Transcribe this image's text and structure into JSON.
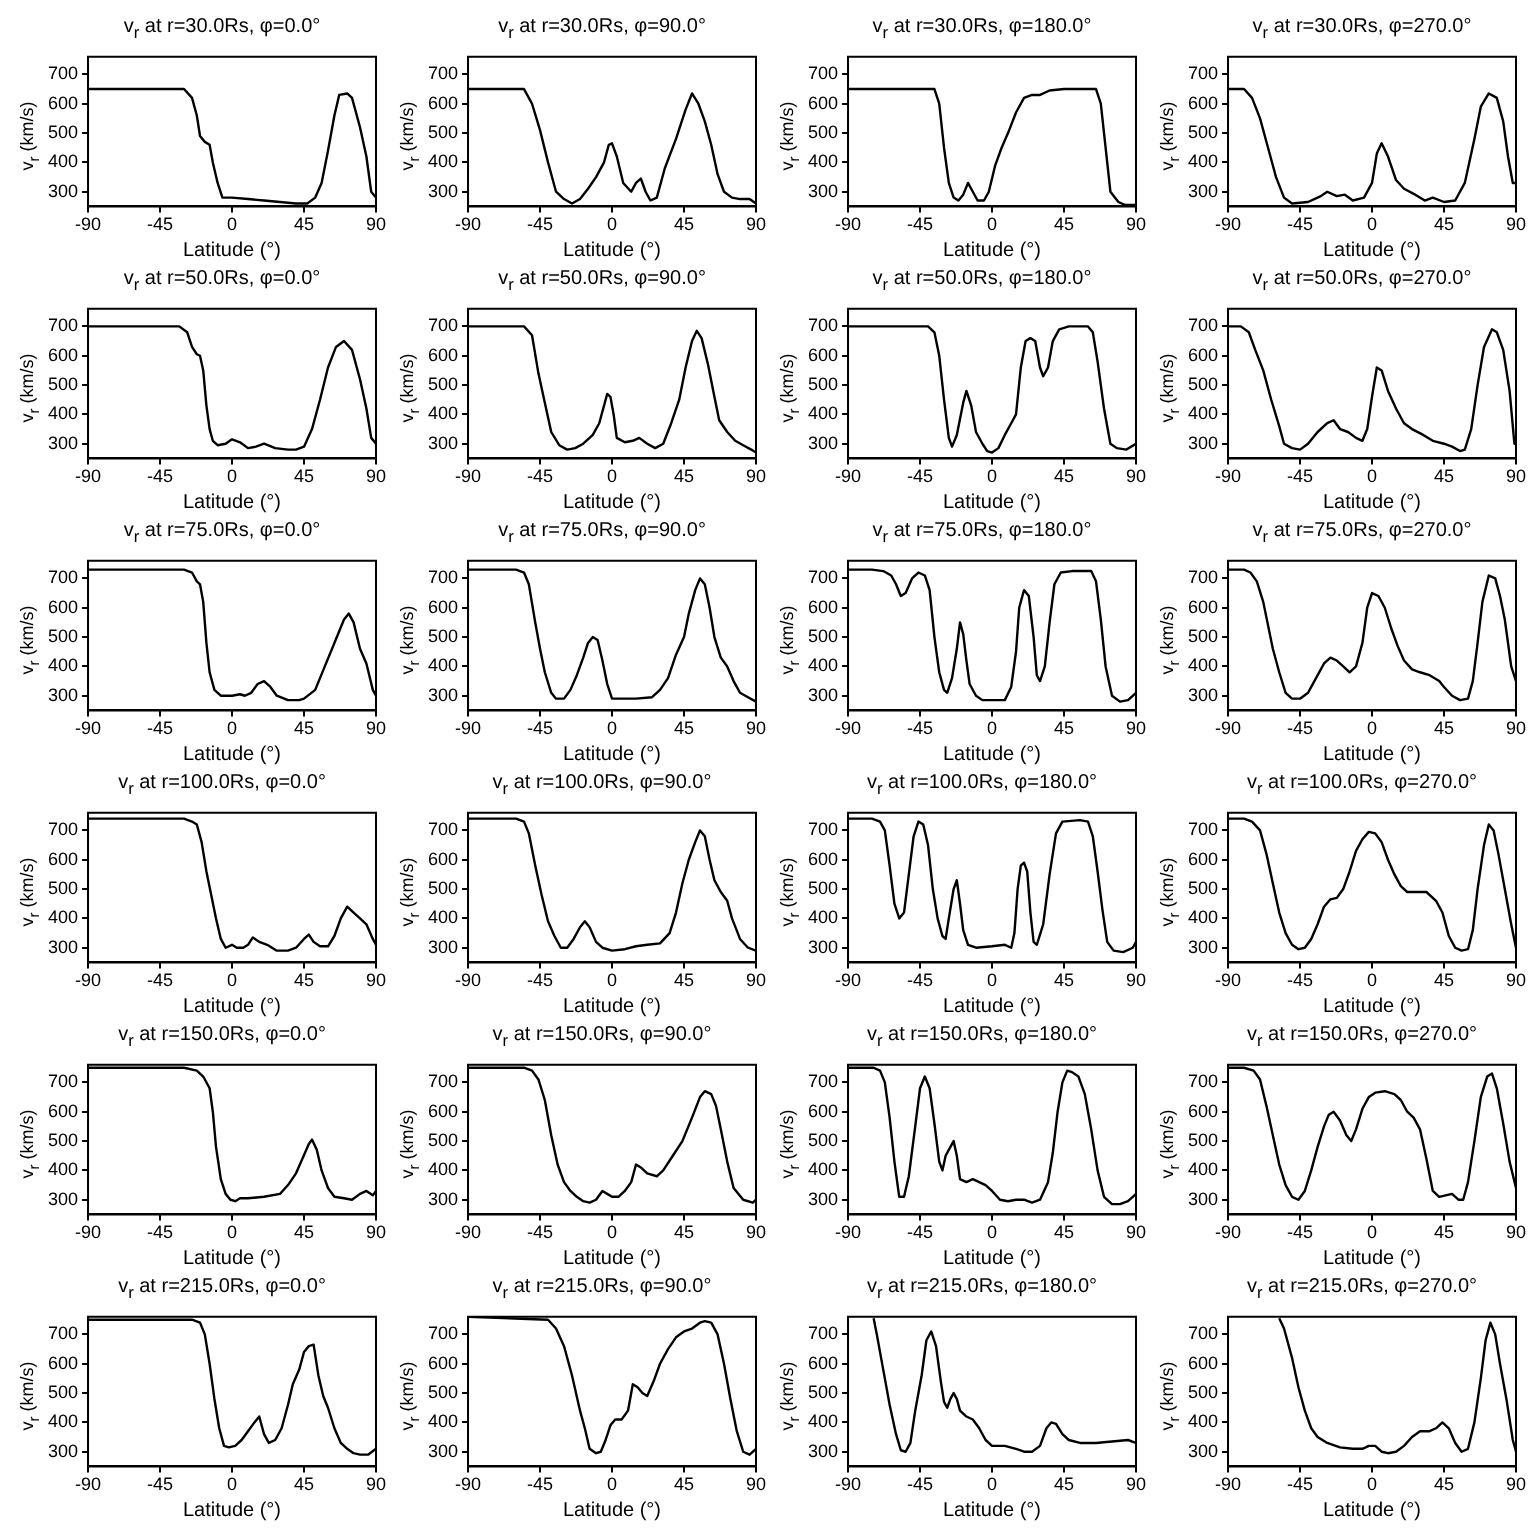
{
  "chart_data": [
    {
      "type": "line",
      "title": "v$_{r}$ at r=30.0Rs, φ=0.0°",
      "xlabel": "Latitude (°)",
      "ylabel": "v$_{r}$ (km/s)",
      "color": "#000000",
      "xlim": [
        -90,
        90
      ],
      "xticks": [
        -90,
        -45,
        0,
        45,
        90
      ],
      "ylim": [
        250,
        760
      ],
      "yticks": [
        300,
        400,
        500,
        600,
        700
      ],
      "x": [
        -90,
        -30,
        -25,
        -22,
        -20,
        -17,
        -14,
        -12,
        -9,
        -6,
        0,
        10,
        20,
        30,
        40,
        47,
        52,
        56,
        60,
        64,
        67,
        72,
        75,
        80,
        84,
        87,
        90
      ],
      "values": [
        650,
        650,
        620,
        560,
        490,
        470,
        460,
        400,
        330,
        280,
        280,
        275,
        270,
        265,
        260,
        260,
        280,
        330,
        440,
        560,
        630,
        635,
        620,
        520,
        420,
        300,
        280
      ]
    },
    {
      "type": "line",
      "title": "v$_{r}$ at r=30.0Rs, φ=90.0°",
      "xlabel": "Latitude (°)",
      "ylabel": "v$_{r}$ (km/s)",
      "color": "#000000",
      "xlim": [
        -90,
        90
      ],
      "xticks": [
        -90,
        -45,
        0,
        45,
        90
      ],
      "ylim": [
        250,
        760
      ],
      "yticks": [
        300,
        400,
        500,
        600,
        700
      ],
      "x": [
        -90,
        -55,
        -50,
        -45,
        -40,
        -35,
        -30,
        -25,
        -20,
        -15,
        -10,
        -5,
        -2,
        0,
        3,
        7,
        12,
        15,
        18,
        21,
        24,
        28,
        33,
        40,
        46,
        50,
        54,
        58,
        62,
        66,
        70,
        75,
        80,
        86,
        90
      ],
      "values": [
        650,
        650,
        600,
        510,
        400,
        300,
        275,
        260,
        275,
        310,
        350,
        400,
        460,
        465,
        420,
        330,
        300,
        330,
        345,
        300,
        270,
        280,
        380,
        480,
        580,
        635,
        600,
        540,
        460,
        360,
        300,
        280,
        275,
        275,
        260
      ]
    },
    {
      "type": "line",
      "title": "v$_{r}$ at r=30.0Rs, φ=180.0°",
      "xlabel": "Latitude (°)",
      "ylabel": "v$_{r}$ (km/s)",
      "color": "#000000",
      "xlim": [
        -90,
        90
      ],
      "xticks": [
        -90,
        -45,
        0,
        45,
        90
      ],
      "ylim": [
        250,
        760
      ],
      "yticks": [
        300,
        400,
        500,
        600,
        700
      ],
      "x": [
        -90,
        -36,
        -33,
        -30,
        -27,
        -24,
        -21,
        -18,
        -15,
        -12,
        -9,
        -5,
        -2,
        2,
        6,
        10,
        15,
        20,
        25,
        30,
        36,
        45,
        65,
        68,
        71,
        74,
        79,
        83,
        90
      ],
      "values": [
        650,
        650,
        600,
        450,
        330,
        280,
        270,
        290,
        330,
        300,
        270,
        270,
        300,
        390,
        450,
        500,
        570,
        620,
        630,
        630,
        645,
        650,
        650,
        600,
        450,
        300,
        265,
        255,
        255
      ]
    },
    {
      "type": "line",
      "title": "v$_{r}$ at r=30.0Rs, φ=270.0°",
      "xlabel": "Latitude (°)",
      "ylabel": "v$_{r}$ (km/s)",
      "color": "#000000",
      "xlim": [
        -90,
        90
      ],
      "xticks": [
        -90,
        -45,
        0,
        45,
        90
      ],
      "ylim": [
        250,
        760
      ],
      "yticks": [
        300,
        400,
        500,
        600,
        700
      ],
      "x": [
        -90,
        -80,
        -75,
        -70,
        -65,
        -60,
        -55,
        -50,
        -40,
        -32,
        -28,
        -22,
        -17,
        -12,
        -5,
        0,
        3,
        6,
        10,
        15,
        20,
        27,
        33,
        38,
        45,
        52,
        58,
        64,
        68,
        73,
        78,
        82,
        85,
        88,
        90
      ],
      "values": [
        650,
        650,
        620,
        550,
        450,
        350,
        280,
        260,
        265,
        285,
        300,
        285,
        290,
        270,
        280,
        330,
        430,
        465,
        420,
        340,
        310,
        290,
        270,
        280,
        265,
        270,
        330,
        480,
        590,
        635,
        620,
        540,
        420,
        330,
        330
      ]
    },
    {
      "type": "line",
      "title": "v$_{r}$ at r=50.0Rs, φ=0.0°",
      "xlabel": "Latitude (°)",
      "ylabel": "v$_{r}$ (km/s)",
      "color": "#000000",
      "xlim": [
        -90,
        90
      ],
      "xticks": [
        -90,
        -45,
        0,
        45,
        90
      ],
      "ylim": [
        250,
        760
      ],
      "yticks": [
        300,
        400,
        500,
        600,
        700
      ],
      "x": [
        -90,
        -33,
        -28,
        -25,
        -22,
        -20,
        -18,
        -16,
        -14,
        -12,
        -9,
        -4,
        0,
        5,
        10,
        15,
        20,
        27,
        35,
        40,
        45,
        50,
        55,
        60,
        65,
        70,
        75,
        80,
        84,
        87,
        90
      ],
      "values": [
        700,
        700,
        680,
        630,
        605,
        600,
        550,
        430,
        350,
        310,
        295,
        300,
        315,
        305,
        285,
        290,
        300,
        285,
        280,
        280,
        290,
        350,
        450,
        560,
        630,
        650,
        620,
        520,
        420,
        320,
        300
      ]
    },
    {
      "type": "line",
      "title": "v$_{r}$ at r=50.0Rs, φ=90.0°",
      "xlabel": "Latitude (°)",
      "ylabel": "v$_{r}$ (km/s)",
      "color": "#000000",
      "xlim": [
        -90,
        90
      ],
      "xticks": [
        -90,
        -45,
        0,
        45,
        90
      ],
      "ylim": [
        250,
        760
      ],
      "yticks": [
        300,
        400,
        500,
        600,
        700
      ],
      "x": [
        -90,
        -55,
        -50,
        -46,
        -42,
        -38,
        -33,
        -28,
        -23,
        -18,
        -12,
        -8,
        -5,
        -3,
        -1,
        1,
        3,
        8,
        13,
        17,
        22,
        27,
        32,
        37,
        42,
        46,
        50,
        53,
        56,
        60,
        64,
        67,
        72,
        77,
        82,
        87,
        90
      ],
      "values": [
        700,
        700,
        670,
        540,
        440,
        340,
        295,
        280,
        285,
        300,
        330,
        370,
        430,
        470,
        460,
        400,
        320,
        305,
        310,
        320,
        300,
        285,
        300,
        370,
        450,
        560,
        650,
        685,
        660,
        570,
        460,
        380,
        340,
        310,
        295,
        280,
        270
      ]
    },
    {
      "type": "line",
      "title": "v$_{r}$ at r=50.0Rs, φ=180.0°",
      "xlabel": "Latitude (°)",
      "ylabel": "v$_{r}$ (km/s)",
      "color": "#000000",
      "xlim": [
        -90,
        90
      ],
      "xticks": [
        -90,
        -45,
        0,
        45,
        90
      ],
      "ylim": [
        250,
        760
      ],
      "yticks": [
        300,
        400,
        500,
        600,
        700
      ],
      "x": [
        -90,
        -50,
        -40,
        -36,
        -33,
        -30,
        -27,
        -25,
        -22,
        -18,
        -16,
        -13,
        -10,
        -6,
        -3,
        0,
        4,
        8,
        12,
        15,
        18,
        21,
        24,
        27,
        30,
        32,
        35,
        38,
        42,
        48,
        60,
        63,
        66,
        70,
        74,
        78,
        84,
        90
      ],
      "values": [
        700,
        700,
        700,
        680,
        600,
        450,
        320,
        290,
        330,
        440,
        480,
        430,
        340,
        300,
        275,
        270,
        285,
        330,
        370,
        400,
        560,
        650,
        660,
        650,
        560,
        530,
        560,
        650,
        690,
        700,
        700,
        680,
        580,
        420,
        300,
        285,
        280,
        300
      ]
    },
    {
      "type": "line",
      "title": "v$_{r}$ at r=50.0Rs, φ=270.0°",
      "xlabel": "Latitude (°)",
      "ylabel": "v$_{r}$ (km/s)",
      "color": "#000000",
      "xlim": [
        -90,
        90
      ],
      "xticks": [
        -90,
        -45,
        0,
        45,
        90
      ],
      "ylim": [
        250,
        760
      ],
      "yticks": [
        300,
        400,
        500,
        600,
        700
      ],
      "x": [
        -90,
        -82,
        -77,
        -73,
        -68,
        -63,
        -58,
        -55,
        -50,
        -45,
        -40,
        -34,
        -28,
        -24,
        -20,
        -15,
        -10,
        -6,
        -3,
        0,
        3,
        6,
        10,
        15,
        20,
        25,
        32,
        38,
        45,
        50,
        55,
        58,
        62,
        66,
        70,
        75,
        78,
        82,
        86,
        89,
        90
      ],
      "values": [
        700,
        700,
        680,
        620,
        550,
        450,
        360,
        300,
        285,
        280,
        300,
        340,
        370,
        380,
        350,
        340,
        320,
        310,
        350,
        460,
        560,
        550,
        480,
        420,
        370,
        350,
        330,
        310,
        300,
        290,
        275,
        280,
        350,
        500,
        630,
        690,
        680,
        620,
        480,
        300,
        300
      ]
    },
    {
      "type": "line",
      "title": "v$_{r}$ at r=75.0Rs, φ=0.0°",
      "xlabel": "Latitude (°)",
      "ylabel": "v$_{r}$ (km/s)",
      "color": "#000000",
      "xlim": [
        -90,
        90
      ],
      "xticks": [
        -90,
        -45,
        0,
        45,
        90
      ],
      "ylim": [
        250,
        760
      ],
      "yticks": [
        300,
        400,
        500,
        600,
        700
      ],
      "x": [
        -90,
        -30,
        -25,
        -22,
        -20,
        -18,
        -16,
        -14,
        -11,
        -7,
        0,
        5,
        8,
        12,
        16,
        20,
        24,
        28,
        35,
        42,
        45,
        52,
        58,
        64,
        70,
        73,
        76,
        80,
        84,
        88,
        90
      ],
      "values": [
        730,
        730,
        720,
        690,
        680,
        620,
        480,
        380,
        320,
        300,
        300,
        305,
        300,
        310,
        340,
        350,
        330,
        300,
        285,
        285,
        290,
        320,
        400,
        480,
        560,
        580,
        550,
        460,
        410,
        320,
        300
      ]
    },
    {
      "type": "line",
      "title": "v$_{r}$ at r=75.0Rs, φ=90.0°",
      "xlabel": "Latitude (°)",
      "ylabel": "v$_{r}$ (km/s)",
      "color": "#000000",
      "xlim": [
        -90,
        90
      ],
      "xticks": [
        -90,
        -45,
        0,
        45,
        90
      ],
      "ylim": [
        250,
        760
      ],
      "yticks": [
        300,
        400,
        500,
        600,
        700
      ],
      "x": [
        -90,
        -60,
        -55,
        -52,
        -48,
        -45,
        -42,
        -38,
        -35,
        -30,
        -26,
        -22,
        -18,
        -15,
        -12,
        -9,
        -6,
        -3,
        0,
        5,
        15,
        25,
        30,
        35,
        40,
        45,
        48,
        52,
        55,
        58,
        61,
        64,
        68,
        72,
        76,
        80,
        85,
        90
      ],
      "values": [
        730,
        730,
        720,
        680,
        550,
        460,
        380,
        310,
        290,
        290,
        320,
        370,
        430,
        480,
        500,
        490,
        420,
        340,
        290,
        290,
        290,
        295,
        320,
        360,
        440,
        500,
        580,
        660,
        700,
        680,
        600,
        500,
        430,
        400,
        350,
        310,
        295,
        280
      ]
    },
    {
      "type": "line",
      "title": "v$_{r}$ at r=75.0Rs, φ=180.0°",
      "xlabel": "Latitude (°)",
      "ylabel": "v$_{r}$ (km/s)",
      "color": "#000000",
      "xlim": [
        -90,
        90
      ],
      "xticks": [
        -90,
        -45,
        0,
        45,
        90
      ],
      "ylim": [
        250,
        760
      ],
      "yticks": [
        300,
        400,
        500,
        600,
        700
      ],
      "x": [
        -90,
        -75,
        -68,
        -63,
        -60,
        -57,
        -54,
        -50,
        -46,
        -42,
        -39,
        -36,
        -33,
        -30,
        -28,
        -25,
        -22,
        -20,
        -18,
        -16,
        -14,
        -10,
        -6,
        0,
        8,
        12,
        15,
        17,
        20,
        23,
        26,
        28,
        30,
        33,
        36,
        39,
        43,
        50,
        62,
        65,
        68,
        71,
        75,
        80,
        85,
        90
      ],
      "values": [
        730,
        730,
        725,
        710,
        680,
        640,
        650,
        700,
        720,
        710,
        660,
        500,
        380,
        320,
        310,
        360,
        460,
        550,
        510,
        420,
        340,
        300,
        285,
        285,
        285,
        330,
        450,
        600,
        660,
        640,
        500,
        370,
        350,
        400,
        550,
        680,
        720,
        725,
        725,
        690,
        560,
        400,
        300,
        280,
        285,
        310
      ]
    },
    {
      "type": "line",
      "title": "v$_{r}$ at r=75.0Rs, φ=270.0°",
      "xlabel": "Latitude (°)",
      "ylabel": "v$_{r}$ (km/s)",
      "color": "#000000",
      "xlim": [
        -90,
        90
      ],
      "xticks": [
        -90,
        -45,
        0,
        45,
        90
      ],
      "ylim": [
        250,
        760
      ],
      "yticks": [
        300,
        400,
        500,
        600,
        700
      ],
      "x": [
        -90,
        -80,
        -76,
        -72,
        -68,
        -65,
        -62,
        -58,
        -54,
        -50,
        -45,
        -40,
        -35,
        -30,
        -26,
        -22,
        -18,
        -14,
        -10,
        -6,
        -3,
        0,
        4,
        8,
        12,
        16,
        20,
        25,
        30,
        36,
        42,
        45,
        50,
        55,
        60,
        63,
        66,
        69,
        73,
        77,
        80,
        83,
        87,
        90
      ],
      "values": [
        730,
        730,
        720,
        690,
        620,
        540,
        460,
        380,
        310,
        290,
        290,
        310,
        360,
        410,
        430,
        420,
        400,
        380,
        400,
        480,
        600,
        650,
        640,
        600,
        530,
        470,
        420,
        390,
        380,
        370,
        350,
        330,
        300,
        285,
        290,
        350,
        480,
        620,
        710,
        700,
        640,
        560,
        400,
        350
      ]
    },
    {
      "type": "line",
      "title": "v$_{r}$ at r=100.0Rs, φ=0.0°",
      "xlabel": "Latitude (°)",
      "ylabel": "v$_{r}$ (km/s)",
      "color": "#000000",
      "xlim": [
        -90,
        90
      ],
      "xticks": [
        -90,
        -45,
        0,
        45,
        90
      ],
      "ylim": [
        250,
        760
      ],
      "yticks": [
        300,
        400,
        500,
        600,
        700
      ],
      "x": [
        -90,
        -30,
        -25,
        -22,
        -19,
        -16,
        -13,
        -10,
        -7,
        -4,
        0,
        3,
        7,
        10,
        13,
        17,
        22,
        28,
        35,
        40,
        45,
        48,
        51,
        55,
        60,
        64,
        68,
        72,
        76,
        80,
        84,
        88,
        90
      ],
      "values": [
        740,
        740,
        730,
        720,
        660,
        560,
        480,
        400,
        330,
        300,
        310,
        300,
        300,
        310,
        335,
        320,
        310,
        290,
        290,
        300,
        330,
        345,
        320,
        305,
        305,
        340,
        400,
        440,
        420,
        400,
        380,
        330,
        310
      ]
    },
    {
      "type": "line",
      "title": "v$_{r}$ at r=100.0Rs, φ=90.0°",
      "xlabel": "Latitude (°)",
      "ylabel": "v$_{r}$ (km/s)",
      "color": "#000000",
      "xlim": [
        -90,
        90
      ],
      "xticks": [
        -90,
        -45,
        0,
        45,
        90
      ],
      "ylim": [
        250,
        760
      ],
      "yticks": [
        300,
        400,
        500,
        600,
        700
      ],
      "x": [
        -90,
        -60,
        -55,
        -52,
        -48,
        -44,
        -40,
        -36,
        -32,
        -28,
        -24,
        -20,
        -17,
        -14,
        -10,
        -6,
        0,
        8,
        15,
        22,
        30,
        36,
        40,
        44,
        48,
        52,
        55,
        58,
        61,
        64,
        68,
        72,
        75,
        80,
        85,
        90
      ],
      "values": [
        740,
        740,
        730,
        690,
        580,
        480,
        390,
        340,
        300,
        300,
        330,
        370,
        390,
        370,
        320,
        300,
        290,
        295,
        305,
        310,
        315,
        350,
        420,
        520,
        600,
        660,
        700,
        680,
        600,
        530,
        490,
        460,
        400,
        330,
        300,
        290
      ]
    },
    {
      "type": "line",
      "title": "v$_{r}$ at r=100.0Rs, φ=180.0°",
      "xlabel": "Latitude (°)",
      "ylabel": "v$_{r}$ (km/s)",
      "color": "#000000",
      "xlim": [
        -90,
        90
      ],
      "xticks": [
        -90,
        -45,
        0,
        45,
        90
      ],
      "ylim": [
        250,
        760
      ],
      "yticks": [
        300,
        400,
        500,
        600,
        700
      ],
      "x": [
        -90,
        -75,
        -70,
        -67,
        -64,
        -61,
        -58,
        -55,
        -52,
        -49,
        -46,
        -43,
        -40,
        -37,
        -34,
        -31,
        -29,
        -27,
        -24,
        -22,
        -20,
        -18,
        -15,
        -10,
        0,
        8,
        12,
        14,
        16,
        18,
        20,
        22,
        24,
        26,
        28,
        32,
        36,
        40,
        44,
        55,
        60,
        63,
        66,
        69,
        72,
        76,
        82,
        88,
        90
      ],
      "values": [
        740,
        740,
        730,
        700,
        580,
        450,
        400,
        420,
        550,
        680,
        730,
        720,
        650,
        500,
        400,
        340,
        330,
        400,
        500,
        530,
        450,
        360,
        310,
        300,
        305,
        310,
        300,
        350,
        500,
        580,
        590,
        560,
        420,
        320,
        310,
        380,
        550,
        690,
        730,
        735,
        730,
        680,
        560,
        430,
        320,
        290,
        285,
        300,
        320
      ]
    },
    {
      "type": "line",
      "title": "v$_{r}$ at r=100.0Rs, φ=270.0°",
      "xlabel": "Latitude (°)",
      "ylabel": "v$_{r}$ (km/s)",
      "color": "#000000",
      "xlim": [
        -90,
        90
      ],
      "xticks": [
        -90,
        -45,
        0,
        45,
        90
      ],
      "ylim": [
        250,
        760
      ],
      "yticks": [
        300,
        400,
        500,
        600,
        700
      ],
      "x": [
        -90,
        -80,
        -75,
        -70,
        -66,
        -62,
        -58,
        -54,
        -50,
        -46,
        -42,
        -38,
        -34,
        -30,
        -26,
        -22,
        -18,
        -14,
        -10,
        -6,
        -2,
        2,
        6,
        10,
        14,
        18,
        22,
        28,
        34,
        40,
        44,
        48,
        52,
        56,
        60,
        63,
        66,
        70,
        73,
        76,
        79,
        83,
        87,
        90
      ],
      "values": [
        740,
        740,
        730,
        700,
        620,
        520,
        420,
        350,
        310,
        295,
        300,
        330,
        380,
        440,
        465,
        470,
        500,
        560,
        630,
        670,
        695,
        690,
        660,
        600,
        550,
        510,
        490,
        490,
        490,
        460,
        420,
        340,
        300,
        290,
        295,
        360,
        500,
        650,
        720,
        700,
        620,
        500,
        380,
        300
      ]
    },
    {
      "type": "line",
      "title": "v$_{r}$ at r=150.0Rs, φ=0.0°",
      "xlabel": "Latitude (°)",
      "ylabel": "v$_{r}$ (km/s)",
      "color": "#000000",
      "xlim": [
        -90,
        90
      ],
      "xticks": [
        -90,
        -45,
        0,
        45,
        90
      ],
      "ylim": [
        250,
        760
      ],
      "yticks": [
        300,
        400,
        500,
        600,
        700
      ],
      "x": [
        -90,
        -30,
        -22,
        -18,
        -14,
        -12,
        -10,
        -7,
        -4,
        -1,
        2,
        5,
        10,
        20,
        30,
        35,
        40,
        44,
        48,
        50,
        53,
        56,
        60,
        64,
        70,
        75,
        80,
        84,
        88,
        90
      ],
      "values": [
        750,
        750,
        740,
        720,
        680,
        600,
        480,
        370,
        320,
        300,
        295,
        305,
        305,
        310,
        320,
        350,
        390,
        440,
        490,
        505,
        470,
        400,
        340,
        310,
        305,
        300,
        320,
        330,
        315,
        330
      ]
    },
    {
      "type": "line",
      "title": "v$_{r}$ at r=150.0Rs, φ=90.0°",
      "xlabel": "Latitude (°)",
      "ylabel": "v$_{r}$ (km/s)",
      "color": "#000000",
      "xlim": [
        -90,
        90
      ],
      "xticks": [
        -90,
        -45,
        0,
        45,
        90
      ],
      "ylim": [
        250,
        760
      ],
      "yticks": [
        300,
        400,
        500,
        600,
        700
      ],
      "x": [
        -90,
        -55,
        -50,
        -46,
        -42,
        -38,
        -34,
        -30,
        -26,
        -22,
        -18,
        -14,
        -10,
        -6,
        -3,
        0,
        4,
        8,
        12,
        15,
        18,
        22,
        28,
        32,
        38,
        44,
        50,
        55,
        58,
        62,
        65,
        68,
        72,
        76,
        82,
        88,
        90
      ],
      "values": [
        750,
        750,
        740,
        710,
        640,
        520,
        420,
        360,
        330,
        310,
        295,
        290,
        300,
        330,
        320,
        310,
        310,
        330,
        360,
        420,
        410,
        390,
        380,
        400,
        450,
        500,
        580,
        650,
        670,
        660,
        620,
        540,
        430,
        340,
        300,
        290,
        300
      ]
    },
    {
      "type": "line",
      "title": "v$_{r}$ at r=150.0Rs, φ=180.0°",
      "xlabel": "Latitude (°)",
      "ylabel": "v$_{r}$ (km/s)",
      "color": "#000000",
      "xlim": [
        -90,
        90
      ],
      "xticks": [
        -90,
        -45,
        0,
        45,
        90
      ],
      "ylim": [
        250,
        760
      ],
      "yticks": [
        300,
        400,
        500,
        600,
        700
      ],
      "x": [
        -90,
        -74,
        -70,
        -67,
        -64,
        -61,
        -58,
        -55,
        -52,
        -48,
        -45,
        -42,
        -39,
        -36,
        -33,
        -31,
        -29,
        -26,
        -24,
        -22,
        -20,
        -16,
        -12,
        -8,
        -4,
        0,
        5,
        10,
        15,
        20,
        25,
        30,
        35,
        38,
        41,
        44,
        47,
        50,
        54,
        58,
        62,
        66,
        70,
        75,
        80,
        85,
        88,
        90
      ],
      "values": [
        750,
        750,
        740,
        700,
        580,
        430,
        310,
        310,
        380,
        550,
        680,
        720,
        680,
        560,
        430,
        400,
        450,
        480,
        500,
        450,
        370,
        360,
        370,
        360,
        350,
        330,
        300,
        295,
        300,
        300,
        290,
        300,
        360,
        460,
        600,
        700,
        740,
        735,
        720,
        660,
        540,
        400,
        310,
        285,
        285,
        295,
        310,
        320
      ]
    },
    {
      "type": "line",
      "title": "v$_{r}$ at r=150.0Rs, φ=270.0°",
      "xlabel": "Latitude (°)",
      "ylabel": "v$_{r}$ (km/s)",
      "color": "#000000",
      "xlim": [
        -90,
        90
      ],
      "xticks": [
        -90,
        -45,
        0,
        45,
        90
      ],
      "ylim": [
        250,
        760
      ],
      "yticks": [
        300,
        400,
        500,
        600,
        700
      ],
      "x": [
        -90,
        -80,
        -74,
        -70,
        -66,
        -62,
        -58,
        -54,
        -50,
        -46,
        -42,
        -38,
        -34,
        -30,
        -27,
        -24,
        -20,
        -16,
        -13,
        -10,
        -6,
        -2,
        2,
        8,
        14,
        18,
        22,
        26,
        30,
        34,
        38,
        42,
        46,
        50,
        54,
        57,
        60,
        64,
        68,
        72,
        75,
        78,
        82,
        86,
        90
      ],
      "values": [
        750,
        750,
        740,
        710,
        620,
        520,
        420,
        350,
        310,
        300,
        330,
        400,
        480,
        550,
        590,
        600,
        570,
        520,
        500,
        540,
        610,
        650,
        665,
        670,
        660,
        640,
        600,
        580,
        540,
        440,
        330,
        310,
        315,
        320,
        300,
        300,
        360,
        500,
        650,
        720,
        730,
        680,
        560,
        430,
        340
      ]
    },
    {
      "type": "line",
      "title": "v$_{r}$ at r=215.0Rs, φ=0.0°",
      "xlabel": "Latitude (°)",
      "ylabel": "v$_{r}$ (km/s)",
      "color": "#000000",
      "xlim": [
        -90,
        90
      ],
      "xticks": [
        -90,
        -45,
        0,
        45,
        90
      ],
      "ylim": [
        250,
        760
      ],
      "yticks": [
        300,
        400,
        500,
        600,
        700
      ],
      "x": [
        -90,
        -25,
        -20,
        -17,
        -14,
        -11,
        -8,
        -5,
        -2,
        2,
        6,
        10,
        14,
        17,
        20,
        23,
        27,
        31,
        35,
        38,
        42,
        45,
        48,
        51,
        54,
        57,
        60,
        64,
        68,
        72,
        76,
        80,
        85,
        90
      ],
      "values": [
        750,
        750,
        740,
        700,
        600,
        480,
        380,
        320,
        315,
        320,
        340,
        370,
        400,
        420,
        360,
        330,
        340,
        380,
        460,
        530,
        580,
        640,
        660,
        665,
        560,
        490,
        450,
        380,
        330,
        310,
        295,
        290,
        290,
        310
      ]
    },
    {
      "type": "line",
      "title": "v$_{r}$ at r=215.0Rs, φ=90.0°",
      "xlabel": "Latitude (°)",
      "ylabel": "v$_{r}$ (km/s)",
      "color": "#000000",
      "xlim": [
        -90,
        90
      ],
      "xticks": [
        -90,
        -45,
        0,
        45,
        90
      ],
      "ylim": [
        250,
        760
      ],
      "yticks": [
        300,
        400,
        500,
        600,
        700
      ],
      "x": [
        -90,
        -40,
        -35,
        -30,
        -25,
        -20,
        -17,
        -14,
        -10,
        -7,
        -4,
        -1,
        2,
        6,
        10,
        13,
        16,
        19,
        22,
        26,
        30,
        35,
        40,
        45,
        50,
        55,
        58,
        62,
        66,
        70,
        74,
        78,
        82,
        86,
        90
      ],
      "values": [
        760,
        750,
        720,
        660,
        560,
        440,
        380,
        310,
        295,
        300,
        340,
        390,
        410,
        410,
        440,
        530,
        520,
        500,
        490,
        540,
        600,
        650,
        690,
        710,
        720,
        740,
        745,
        740,
        700,
        600,
        480,
        370,
        300,
        290,
        310
      ]
    },
    {
      "type": "line",
      "title": "v$_{r}$ at r=215.0Rs, φ=180.0°",
      "xlabel": "Latitude (°)",
      "ylabel": "v$_{r}$ (km/s)",
      "color": "#000000",
      "xlim": [
        -90,
        90
      ],
      "xticks": [
        -90,
        -45,
        0,
        45,
        90
      ],
      "ylim": [
        250,
        760
      ],
      "yticks": [
        300,
        400,
        500,
        600,
        700
      ],
      "x": [
        -74,
        -72,
        -68,
        -64,
        -60,
        -57,
        -54,
        -51,
        -48,
        -44,
        -41,
        -38,
        -35,
        -32,
        -30,
        -28,
        -26,
        -24,
        -22,
        -20,
        -16,
        -12,
        -8,
        -4,
        0,
        8,
        15,
        20,
        25,
        30,
        34,
        37,
        40,
        44,
        48,
        55,
        65,
        75,
        85,
        90
      ],
      "values": [
        755,
        700,
        580,
        460,
        360,
        305,
        300,
        330,
        440,
        560,
        680,
        710,
        660,
        540,
        470,
        450,
        480,
        500,
        480,
        440,
        420,
        410,
        380,
        340,
        320,
        320,
        310,
        300,
        300,
        320,
        380,
        400,
        395,
        360,
        340,
        330,
        330,
        335,
        340,
        330
      ]
    },
    {
      "type": "line",
      "title": "v$_{r}$ at r=215.0Rs, φ=270.0°",
      "xlabel": "Latitude (°)",
      "ylabel": "v$_{r}$ (km/s)",
      "color": "#000000",
      "xlim": [
        -90,
        90
      ],
      "xticks": [
        -90,
        -45,
        0,
        45,
        90
      ],
      "ylim": [
        250,
        760
      ],
      "yticks": [
        300,
        400,
        500,
        600,
        700
      ],
      "x": [
        -58,
        -55,
        -50,
        -46,
        -42,
        -38,
        -34,
        -28,
        -20,
        -12,
        -6,
        -2,
        2,
        6,
        10,
        15,
        20,
        25,
        30,
        36,
        40,
        44,
        48,
        52,
        56,
        60,
        64,
        68,
        71,
        74,
        77,
        80,
        84,
        88,
        90
      ],
      "values": [
        755,
        720,
        620,
        520,
        440,
        380,
        350,
        330,
        315,
        310,
        310,
        320,
        320,
        300,
        295,
        300,
        320,
        350,
        370,
        370,
        380,
        400,
        380,
        330,
        300,
        310,
        400,
        550,
        680,
        740,
        700,
        600,
        480,
        340,
        300
      ]
    }
  ]
}
